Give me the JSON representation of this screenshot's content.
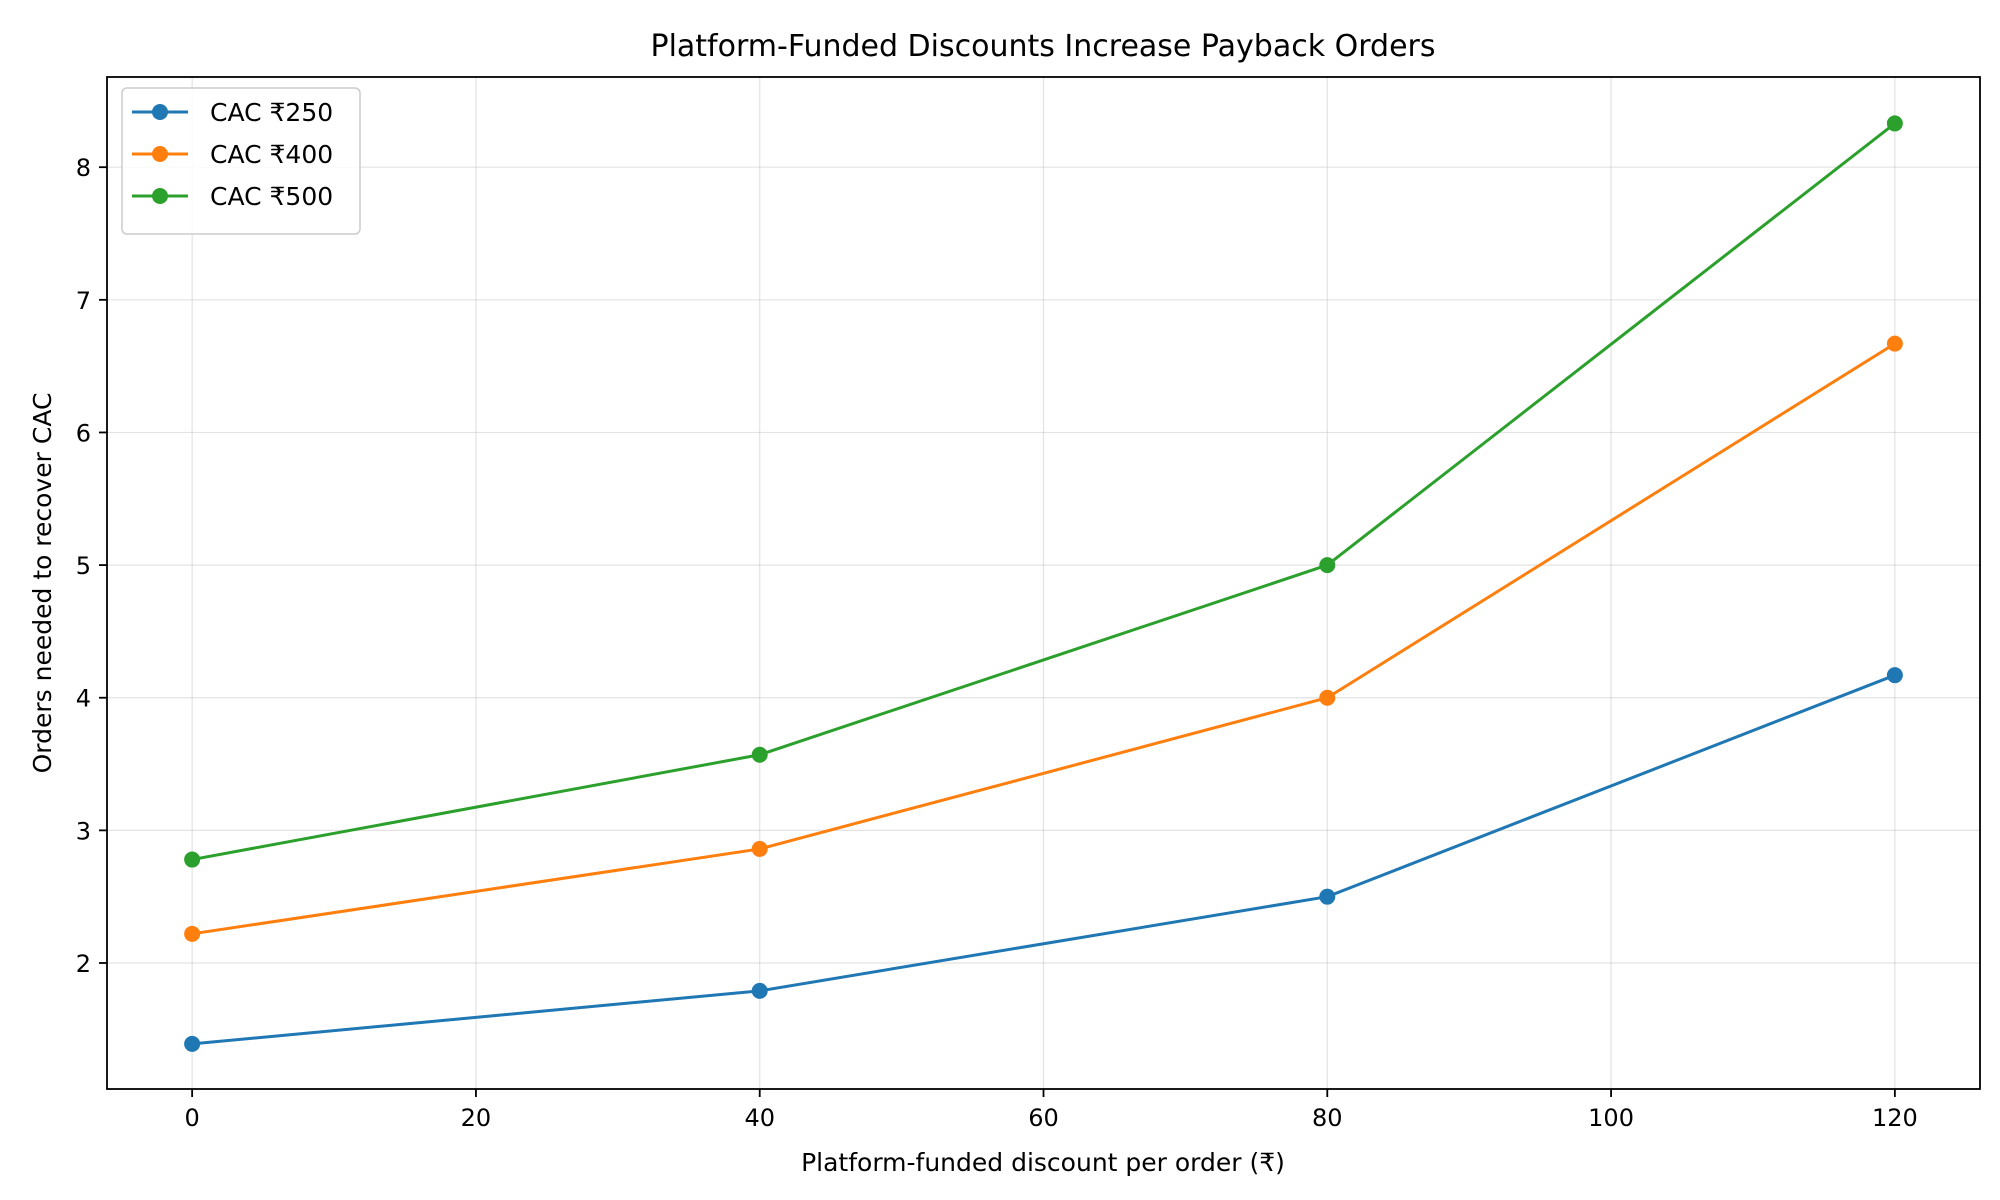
{
  "chart_data": {
    "type": "line",
    "title": "Platform-Funded Discounts Increase Payback Orders",
    "xlabel": "Platform-funded discount per order (₹)",
    "ylabel": "Orders needed to recover CAC",
    "x": [
      0,
      40,
      80,
      120
    ],
    "xlim": [
      -6,
      126
    ],
    "ylim": [
      1.05,
      8.68
    ],
    "xticks": [
      0,
      20,
      40,
      60,
      80,
      100,
      120
    ],
    "yticks": [
      2,
      3,
      4,
      5,
      6,
      7,
      8
    ],
    "grid": true,
    "legend_position": "top-left",
    "series": [
      {
        "name": "CAC ₹250",
        "color": "#1f77b4",
        "values": [
          1.39,
          1.79,
          2.5,
          4.17
        ]
      },
      {
        "name": "CAC ₹400",
        "color": "#ff7f0e",
        "values": [
          2.22,
          2.86,
          4.0,
          6.67
        ]
      },
      {
        "name": "CAC ₹500",
        "color": "#2ca02c",
        "values": [
          2.78,
          3.57,
          5.0,
          8.33
        ]
      }
    ]
  }
}
